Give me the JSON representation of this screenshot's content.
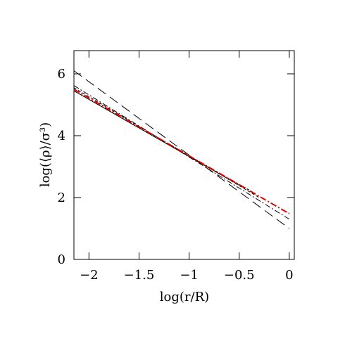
{
  "chart_data": {
    "type": "line",
    "xlabel": "log(r/R)",
    "ylabel": "log(⟨ρ⟩/σ³)",
    "xlim": [
      -2.15,
      0.05
    ],
    "ylim": [
      0,
      6.75
    ],
    "xticks": [
      {
        "value": -2,
        "label": "−2"
      },
      {
        "value": -1.5,
        "label": "−1.5"
      },
      {
        "value": -1,
        "label": "−1"
      },
      {
        "value": -0.5,
        "label": "−0.5"
      },
      0
    ],
    "yticks": [
      0,
      2,
      4,
      6
    ],
    "series": [
      {
        "color": "#000000",
        "dash": "14,7",
        "x": [
          -2.15,
          0
        ],
        "values": [
          6.1,
          1.0
        ]
      },
      {
        "color": "#000000",
        "dash": "8,3,2,3",
        "x": [
          -2.15,
          0
        ],
        "values": [
          5.62,
          1.3
        ]
      },
      {
        "color": "#000000",
        "dash": "4,3",
        "x": [
          -2.15,
          -0.3
        ],
        "values": [
          5.55,
          2.0
        ]
      },
      {
        "color": "#000000",
        "dash": "1,2",
        "x": [
          -2.15,
          -0.4
        ],
        "values": [
          5.45,
          2.25
        ]
      },
      {
        "color": "#000000",
        "dash": "none",
        "x": [
          -2.15,
          -0.5
        ],
        "values": [
          5.45,
          2.4
        ]
      },
      {
        "color": "#e00000",
        "dash": "9,3,2,3",
        "x": [
          -2.15,
          0
        ],
        "values": [
          5.5,
          1.48
        ]
      }
    ]
  }
}
